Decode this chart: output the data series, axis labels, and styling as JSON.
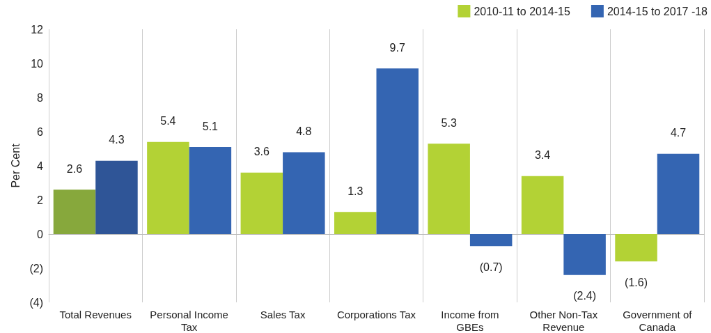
{
  "chart_data": {
    "type": "bar",
    "ylabel": "Per Cent",
    "categories": [
      "Total Revenues",
      "Personal Income\nTax",
      "Sales Tax",
      "Corporations Tax",
      "Income from\nGBEs",
      "Other Non-Tax\nRevenue",
      "Government of\nCanada"
    ],
    "series": [
      {
        "name": "2010-11 to 2014-15",
        "color": "#b3d235",
        "colors": [
          "#87a83c",
          "#b3d235",
          "#b3d235",
          "#b3d235",
          "#b3d235",
          "#b3d235",
          "#b3d235"
        ],
        "values": [
          2.6,
          5.4,
          3.6,
          1.3,
          5.3,
          3.4,
          -1.6
        ],
        "value_labels": [
          "2.6",
          "5.4",
          "3.6",
          "1.3",
          "5.3",
          "3.4",
          "(1.6)"
        ]
      },
      {
        "name": "2014-15 to 2017 -18",
        "color": "#3465b2",
        "colors": [
          "#2f5597",
          "#3465b2",
          "#3465b2",
          "#3465b2",
          "#3465b2",
          "#3465b2",
          "#3465b2"
        ],
        "values": [
          4.3,
          5.1,
          4.8,
          9.7,
          -0.7,
          -2.4,
          4.7
        ],
        "value_labels": [
          "4.3",
          "5.1",
          "4.8",
          "9.7",
          "(0.7)",
          "(2.4)",
          "4.7"
        ]
      }
    ],
    "ylim": [
      -4,
      12
    ],
    "yticks": [
      {
        "value": -4,
        "label": "(4)"
      },
      {
        "value": -2,
        "label": "(2)"
      },
      0,
      2,
      4,
      6,
      8,
      10,
      12
    ],
    "grid": "x",
    "legend": "top right"
  }
}
